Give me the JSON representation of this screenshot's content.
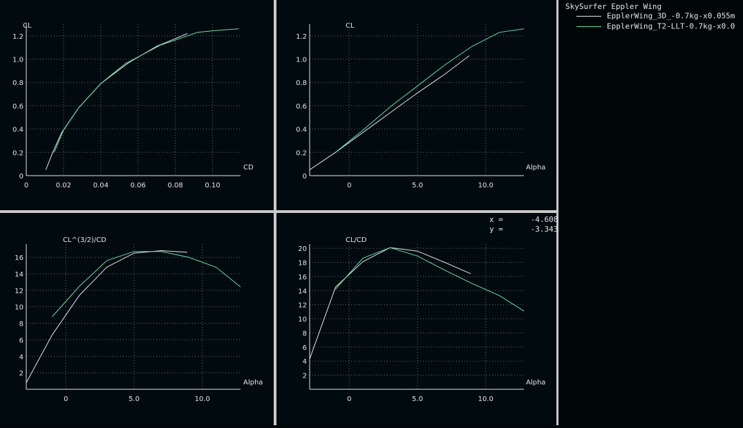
{
  "legend": {
    "title": "SkySurfer Eppler Wing",
    "entries": [
      {
        "label": "EpplerWing_3D_-0.7kg-x0.055m",
        "color": "#e6e6e6"
      },
      {
        "label": "EpplerWing_T2-LLT-0.7kg-x0.0",
        "color": "#59e6a2"
      }
    ]
  },
  "cursor": {
    "x_label": "x =",
    "x_value": "-4.608",
    "y_label": "y =",
    "y_value": "-3.343"
  },
  "chart_data": [
    {
      "type": "line",
      "xlabel": "CD",
      "ylabel": "CL",
      "xlim": [
        0,
        0.115
      ],
      "ylim": [
        0,
        1.3
      ],
      "xticks": [
        0,
        0.02,
        0.04,
        0.06,
        0.08,
        0.1
      ],
      "xtick_labels": [
        "0",
        "0.02",
        "0.04",
        "0.06",
        "0.08",
        "0.10"
      ],
      "yticks": [
        0,
        0.2,
        0.4,
        0.6,
        0.8,
        1.0,
        1.2
      ],
      "ytick_labels": [
        "0",
        "0.2",
        "0.4",
        "0.6",
        "0.8",
        "1.0",
        "1.2"
      ],
      "series": [
        {
          "name": "EpplerWing_3D_-0.7kg-x0.055m",
          "color": "#e6e6e6",
          "x": [
            0.0105,
            0.014,
            0.019,
            0.028,
            0.04,
            0.055,
            0.07,
            0.0865
          ],
          "y": [
            0.05,
            0.19,
            0.37,
            0.58,
            0.79,
            0.97,
            1.11,
            1.22
          ]
        },
        {
          "name": "EpplerWing_T2-LLT-0.7kg-x0.0",
          "color": "#59e6a2",
          "x": [
            0.015,
            0.02,
            0.028,
            0.04,
            0.053,
            0.072,
            0.092,
            0.105,
            0.114
          ],
          "y": [
            0.2,
            0.39,
            0.58,
            0.79,
            0.96,
            1.12,
            1.23,
            1.25,
            1.26
          ]
        }
      ]
    },
    {
      "type": "line",
      "xlabel": "Alpha",
      "ylabel": "CL",
      "xlim": [
        -2.9,
        12.8
      ],
      "ylim": [
        0,
        1.3
      ],
      "xticks": [
        0,
        5,
        10
      ],
      "xtick_labels": [
        "0",
        "5.0",
        "10.0"
      ],
      "yticks": [
        0,
        0.2,
        0.4,
        0.6,
        0.8,
        1.0,
        1.2
      ],
      "ytick_labels": [
        "0",
        "0.2",
        "0.4",
        "0.6",
        "0.8",
        "1.0",
        "1.2"
      ],
      "series": [
        {
          "name": "EpplerWing_3D_-0.7kg-x0.055m",
          "color": "#e6e6e6",
          "x": [
            -2.9,
            -1,
            1,
            3,
            5,
            7,
            8.8
          ],
          "y": [
            0.05,
            0.2,
            0.37,
            0.54,
            0.71,
            0.87,
            1.03
          ]
        },
        {
          "name": "EpplerWing_T2-LLT-0.7kg-x0.0",
          "color": "#59e6a2",
          "x": [
            -1,
            1,
            3,
            5,
            7,
            9,
            11,
            12.8
          ],
          "y": [
            0.2,
            0.39,
            0.59,
            0.77,
            0.95,
            1.11,
            1.23,
            1.26
          ]
        }
      ]
    },
    {
      "type": "line",
      "xlabel": "Alpha",
      "ylabel": "CL^(3/2)/CD",
      "xlim": [
        -2.9,
        12.8
      ],
      "ylim": [
        0,
        17.6
      ],
      "xticks": [
        0,
        5,
        10
      ],
      "xtick_labels": [
        "0",
        "5.0",
        "10.0"
      ],
      "yticks": [
        2,
        4,
        6,
        8,
        10,
        12,
        14,
        16
      ],
      "ytick_labels": [
        "2",
        "4",
        "6",
        "8",
        "10",
        "12",
        "14",
        "16"
      ],
      "series": [
        {
          "name": "EpplerWing_3D_-0.7kg-x0.055m",
          "color": "#e6e6e6",
          "x": [
            -2.9,
            -1,
            1,
            3,
            5,
            7,
            8.9
          ],
          "y": [
            0.8,
            6.6,
            11.4,
            14.8,
            16.5,
            16.8,
            16.6
          ]
        },
        {
          "name": "EpplerWing_T2-LLT-0.7kg-x0.0",
          "color": "#59e6a2",
          "x": [
            -1,
            1,
            3,
            5,
            7,
            9,
            11,
            12.8
          ],
          "y": [
            8.8,
            12.5,
            15.6,
            16.7,
            16.7,
            16.0,
            14.8,
            12.4
          ]
        }
      ]
    },
    {
      "type": "line",
      "xlabel": "Alpha",
      "ylabel": "CL/CD",
      "xlim": [
        -2.9,
        12.8
      ],
      "ylim": [
        0,
        20.6
      ],
      "xticks": [
        0,
        5,
        10
      ],
      "xtick_labels": [
        "0",
        "5.0",
        "10.0"
      ],
      "yticks": [
        2,
        4,
        6,
        8,
        10,
        12,
        14,
        16,
        18,
        20
      ],
      "ytick_labels": [
        "2",
        "4",
        "6",
        "8",
        "10",
        "12",
        "14",
        "16",
        "18",
        "20"
      ],
      "series": [
        {
          "name": "EpplerWing_3D_-0.7kg-x0.055m",
          "color": "#e6e6e6",
          "x": [
            -2.9,
            -1,
            1,
            3,
            5,
            7,
            8.9
          ],
          "y": [
            4.3,
            14.5,
            18.1,
            20.1,
            19.6,
            18.0,
            16.4
          ]
        },
        {
          "name": "EpplerWing_T2-LLT-0.7kg-x0.0",
          "color": "#59e6a2",
          "x": [
            -1,
            1,
            3,
            5,
            7,
            9,
            11,
            12.8
          ],
          "y": [
            14.2,
            18.6,
            20.1,
            18.9,
            16.9,
            15.0,
            13.3,
            11.1
          ]
        }
      ]
    }
  ]
}
